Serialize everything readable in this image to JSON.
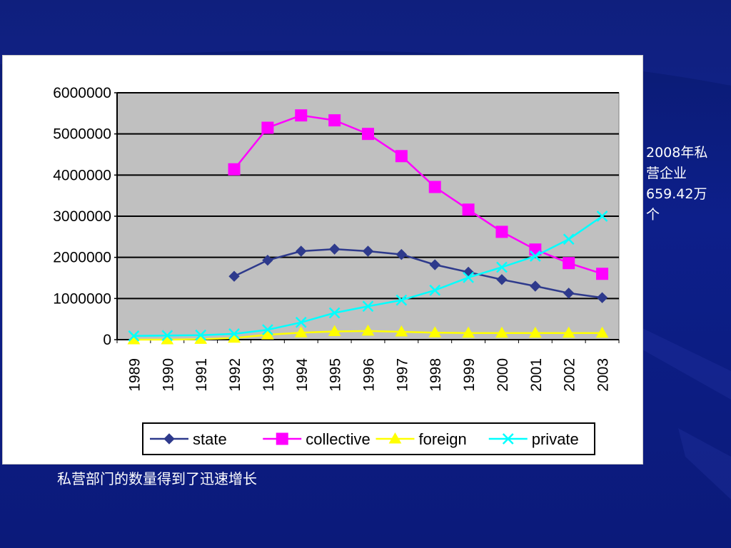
{
  "side_note": "2008年私\n营企业\n659.42万\n个",
  "caption": "私营部门的数量得到了迅速增长",
  "chart_data": {
    "type": "line",
    "title": "",
    "xlabel": "",
    "ylabel": "",
    "ylim": [
      0,
      6000000
    ],
    "yticks": [
      "6000000",
      "5000000",
      "4000000",
      "3000000",
      "2000000",
      "1000000",
      "0"
    ],
    "ytick_values": [
      6000000,
      5000000,
      4000000,
      3000000,
      2000000,
      1000000,
      0
    ],
    "x": [
      "1989",
      "1990",
      "1991",
      "1992",
      "1993",
      "1994",
      "1995",
      "1996",
      "1997",
      "1998",
      "1999",
      "2000",
      "2001",
      "2002",
      "2003"
    ],
    "grid": true,
    "legend_position": "bottom",
    "background": "#c0c0c0",
    "series": [
      {
        "name": "state",
        "color": "#2e3a8c",
        "marker": "diamond",
        "values": [
          null,
          null,
          null,
          1540000,
          1930000,
          2150000,
          2200000,
          2150000,
          2070000,
          1820000,
          1640000,
          1460000,
          1300000,
          1130000,
          1020000
        ]
      },
      {
        "name": "collective",
        "color": "#ff00ff",
        "marker": "square",
        "values": [
          null,
          null,
          null,
          4140000,
          5150000,
          5450000,
          5330000,
          5000000,
          4460000,
          3710000,
          3160000,
          2620000,
          2190000,
          1860000,
          1600000
        ]
      },
      {
        "name": "foreign",
        "color": "#ffff00",
        "marker": "triangle",
        "values": [
          0,
          0,
          10000,
          40000,
          120000,
          170000,
          200000,
          210000,
          190000,
          170000,
          160000,
          160000,
          160000,
          160000,
          160000
        ]
      },
      {
        "name": "private",
        "color": "#00ffff",
        "marker": "x",
        "values": [
          90000,
          100000,
          110000,
          140000,
          240000,
          420000,
          650000,
          810000,
          960000,
          1200000,
          1510000,
          1760000,
          2030000,
          2440000,
          3000000
        ]
      }
    ]
  }
}
